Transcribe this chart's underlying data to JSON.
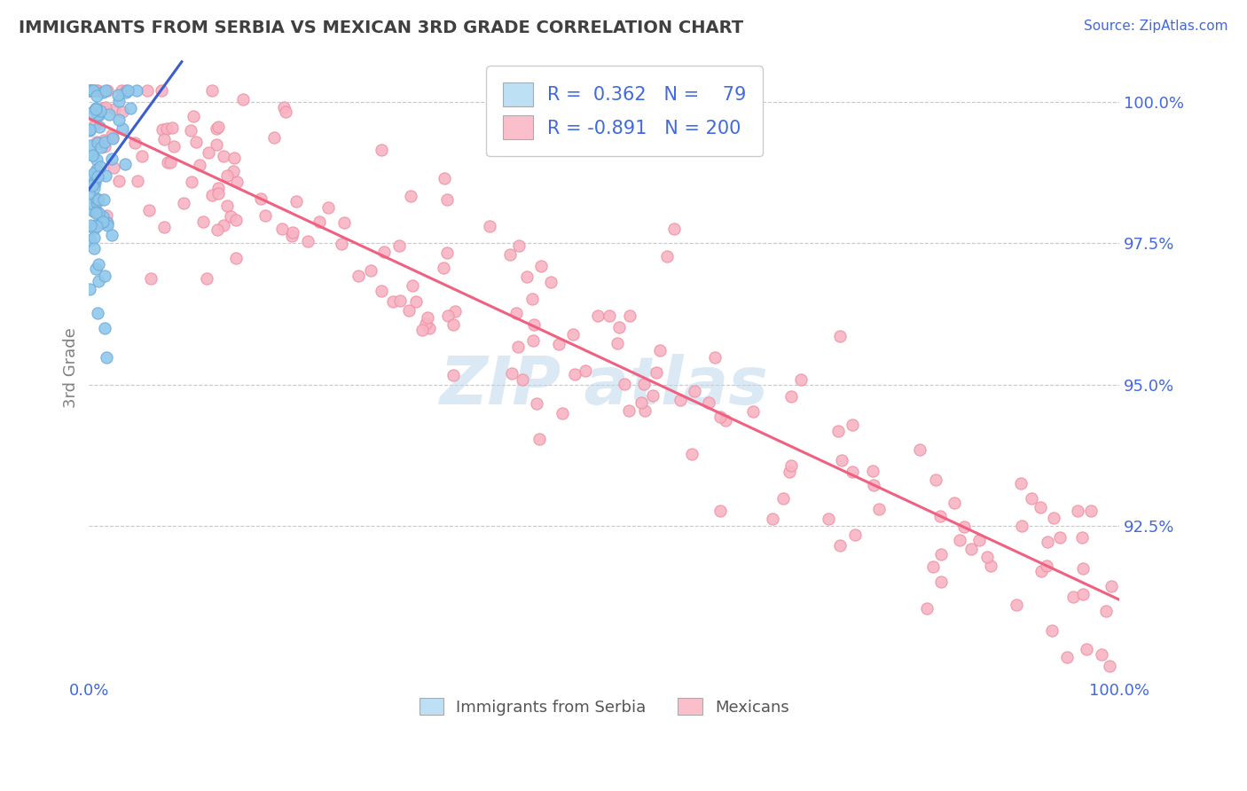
{
  "title": "IMMIGRANTS FROM SERBIA VS MEXICAN 3RD GRADE CORRELATION CHART",
  "source_text": "Source: ZipAtlas.com",
  "ylabel": "3rd Grade",
  "x_tick_labels": [
    "0.0%",
    "100.0%"
  ],
  "y_tick_labels": [
    "92.5%",
    "95.0%",
    "97.5%",
    "100.0%"
  ],
  "y_tick_values": [
    0.925,
    0.95,
    0.975,
    1.0
  ],
  "x_min": 0.0,
  "x_max": 1.0,
  "y_min": 0.898,
  "y_max": 1.008,
  "serbia_R": 0.362,
  "serbia_N": 79,
  "mexico_R": -0.891,
  "mexico_N": 200,
  "serbia_color": "#90C8EA",
  "mexico_color": "#F8B4C4",
  "serbia_line_color": "#3A5FCD",
  "mexico_line_color": "#F06080",
  "legend_box_color": "#BDE0F5",
  "legend_box_color2": "#FBBFCC",
  "title_color": "#404040",
  "axis_label_color": "#808080",
  "tick_label_color": "#4169E1",
  "grid_color": "#C8C8C8",
  "watermark_color": "#BFD8EE",
  "background_color": "#FFFFFF"
}
